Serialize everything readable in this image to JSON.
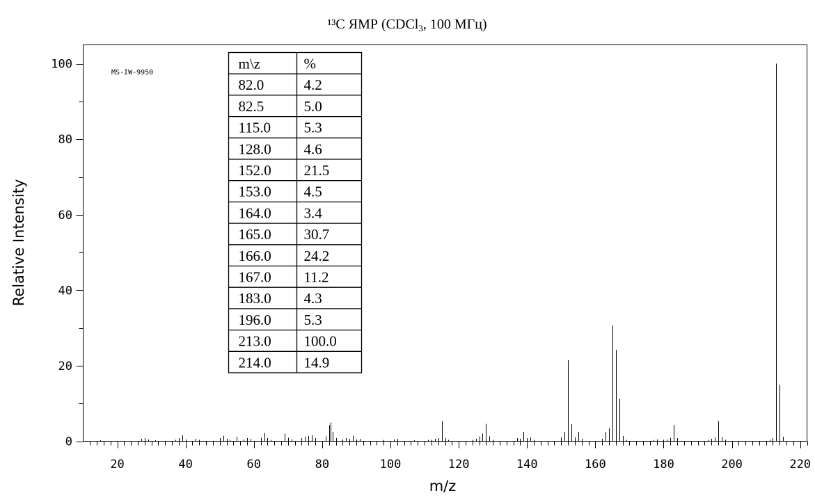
{
  "chart_data": {
    "type": "bar",
    "title_main": "¹³C ЯМР (CDCl",
    "title_sub": "3",
    "title_rest": ", 100 МГц)",
    "xlabel": "m/z",
    "ylabel": "Relative Intensity",
    "xlim": [
      10,
      222
    ],
    "ylim": [
      0,
      105
    ],
    "xticks": [
      20,
      40,
      60,
      80,
      100,
      120,
      140,
      160,
      180,
      200,
      220
    ],
    "yticks": [
      0,
      20,
      40,
      60,
      80,
      100
    ],
    "annotation": "MS-IW-9950",
    "grid": false,
    "table": {
      "headers": [
        "m\\z",
        "%"
      ],
      "rows": [
        [
          "82.0",
          "4.2"
        ],
        [
          "82.5",
          "5.0"
        ],
        [
          "115.0",
          "5.3"
        ],
        [
          "128.0",
          "4.6"
        ],
        [
          "152.0",
          "21.5"
        ],
        [
          "153.0",
          "4.5"
        ],
        [
          "164.0",
          "3.4"
        ],
        [
          "165.0",
          "30.7"
        ],
        [
          "166.0",
          "24.2"
        ],
        [
          "167.0",
          "11.2"
        ],
        [
          "183.0",
          "4.3"
        ],
        [
          "196.0",
          "5.3"
        ],
        [
          "213.0",
          "100.0"
        ],
        [
          "214.0",
          "14.9"
        ]
      ]
    },
    "peaks": [
      [
        15,
        0.3
      ],
      [
        27,
        0.6
      ],
      [
        28,
        0.8
      ],
      [
        29,
        0.5
      ],
      [
        31,
        0.3
      ],
      [
        37,
        0.4
      ],
      [
        38,
        0.8
      ],
      [
        39,
        1.6
      ],
      [
        40,
        0.5
      ],
      [
        43,
        0.6
      ],
      [
        44,
        0.4
      ],
      [
        50,
        0.8
      ],
      [
        51,
        1.5
      ],
      [
        52,
        0.6
      ],
      [
        53,
        0.4
      ],
      [
        55,
        1.2
      ],
      [
        57,
        0.5
      ],
      [
        58,
        0.8
      ],
      [
        59,
        0.6
      ],
      [
        62,
        0.9
      ],
      [
        63,
        2.2
      ],
      [
        64,
        0.8
      ],
      [
        65,
        0.4
      ],
      [
        69,
        2.0
      ],
      [
        70,
        0.9
      ],
      [
        71,
        0.5
      ],
      [
        74,
        0.8
      ],
      [
        75,
        1.2
      ],
      [
        76,
        1.4
      ],
      [
        77,
        1.6
      ],
      [
        78,
        0.8
      ],
      [
        81,
        1.3
      ],
      [
        82,
        4.2
      ],
      [
        82.5,
        5.0
      ],
      [
        83,
        2.5
      ],
      [
        84,
        0.8
      ],
      [
        86,
        0.5
      ],
      [
        87,
        0.8
      ],
      [
        88,
        0.6
      ],
      [
        89,
        1.5
      ],
      [
        90,
        0.5
      ],
      [
        91,
        0.6
      ],
      [
        98,
        0.4
      ],
      [
        101,
        0.5
      ],
      [
        102,
        0.6
      ],
      [
        107,
        0.3
      ],
      [
        111,
        0.4
      ],
      [
        112,
        0.4
      ],
      [
        113,
        0.6
      ],
      [
        114,
        0.8
      ],
      [
        115,
        5.3
      ],
      [
        116,
        0.8
      ],
      [
        117,
        0.4
      ],
      [
        124,
        0.4
      ],
      [
        125,
        0.6
      ],
      [
        126,
        1.3
      ],
      [
        127,
        2.0
      ],
      [
        128,
        4.6
      ],
      [
        129,
        1.3
      ],
      [
        130,
        0.4
      ],
      [
        137,
        0.8
      ],
      [
        138,
        0.6
      ],
      [
        139,
        2.5
      ],
      [
        140,
        0.8
      ],
      [
        141,
        1.0
      ],
      [
        142,
        0.4
      ],
      [
        150,
        1.0
      ],
      [
        151,
        2.5
      ],
      [
        152,
        21.5
      ],
      [
        153,
        4.5
      ],
      [
        154,
        1.0
      ],
      [
        155,
        2.5
      ],
      [
        156,
        0.6
      ],
      [
        162,
        0.6
      ],
      [
        163,
        2.5
      ],
      [
        164,
        3.4
      ],
      [
        165,
        30.7
      ],
      [
        166,
        24.2
      ],
      [
        167,
        11.2
      ],
      [
        168,
        1.4
      ],
      [
        169,
        0.4
      ],
      [
        177,
        0.4
      ],
      [
        178,
        0.5
      ],
      [
        180,
        0.4
      ],
      [
        181,
        0.5
      ],
      [
        182,
        0.9
      ],
      [
        183,
        4.3
      ],
      [
        184,
        0.8
      ],
      [
        193,
        0.4
      ],
      [
        194,
        0.6
      ],
      [
        195,
        1.0
      ],
      [
        196,
        5.3
      ],
      [
        197,
        1.1
      ],
      [
        198,
        0.4
      ],
      [
        211,
        0.4
      ],
      [
        212,
        0.8
      ],
      [
        213,
        100.0
      ],
      [
        214,
        14.9
      ],
      [
        215,
        1.2
      ]
    ]
  }
}
